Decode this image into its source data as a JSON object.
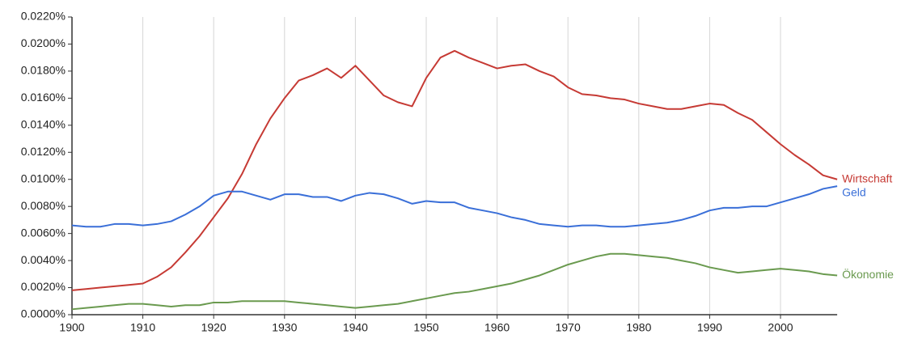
{
  "chart_data": {
    "type": "line",
    "x": [
      1900,
      1902,
      1904,
      1906,
      1908,
      1910,
      1912,
      1914,
      1916,
      1918,
      1920,
      1922,
      1924,
      1926,
      1928,
      1930,
      1932,
      1934,
      1936,
      1938,
      1940,
      1942,
      1944,
      1946,
      1948,
      1950,
      1952,
      1954,
      1956,
      1958,
      1960,
      1962,
      1964,
      1966,
      1968,
      1970,
      1972,
      1974,
      1976,
      1978,
      1980,
      1982,
      1984,
      1986,
      1988,
      1990,
      1992,
      1994,
      1996,
      1998,
      2000,
      2002,
      2004,
      2006,
      2008
    ],
    "series": [
      {
        "name": "Wirtschaft",
        "color": "#c63a34",
        "values": [
          0.0018,
          0.0019,
          0.002,
          0.0021,
          0.0022,
          0.0023,
          0.0028,
          0.0035,
          0.0046,
          0.0058,
          0.0072,
          0.0086,
          0.0104,
          0.0126,
          0.0145,
          0.016,
          0.0173,
          0.0177,
          0.0182,
          0.0175,
          0.0184,
          0.0173,
          0.0162,
          0.0157,
          0.0154,
          0.0175,
          0.019,
          0.0195,
          0.019,
          0.0186,
          0.0182,
          0.0184,
          0.0185,
          0.018,
          0.0176,
          0.0168,
          0.0163,
          0.0162,
          0.016,
          0.0159,
          0.0156,
          0.0154,
          0.0152,
          0.0152,
          0.0154,
          0.0156,
          0.0155,
          0.0149,
          0.0144,
          0.0135,
          0.0126,
          0.0118,
          0.0111,
          0.0103,
          0.01
        ]
      },
      {
        "name": "Geld",
        "color": "#3a6fd8",
        "values": [
          0.0066,
          0.0065,
          0.0065,
          0.0067,
          0.0067,
          0.0066,
          0.0067,
          0.0069,
          0.0074,
          0.008,
          0.0088,
          0.0091,
          0.0091,
          0.0088,
          0.0085,
          0.0089,
          0.0089,
          0.0087,
          0.0087,
          0.0084,
          0.0088,
          0.009,
          0.0089,
          0.0086,
          0.0082,
          0.0084,
          0.0083,
          0.0083,
          0.0079,
          0.0077,
          0.0075,
          0.0072,
          0.007,
          0.0067,
          0.0066,
          0.0065,
          0.0066,
          0.0066,
          0.0065,
          0.0065,
          0.0066,
          0.0067,
          0.0068,
          0.007,
          0.0073,
          0.0077,
          0.0079,
          0.0079,
          0.008,
          0.008,
          0.0083,
          0.0086,
          0.0089,
          0.0093,
          0.0095
        ]
      },
      {
        "name": "Ökonomie",
        "color": "#6a9a4f",
        "values": [
          0.0004,
          0.0005,
          0.0006,
          0.0007,
          0.0008,
          0.0008,
          0.0007,
          0.0006,
          0.0007,
          0.0007,
          0.0009,
          0.0009,
          0.001,
          0.001,
          0.001,
          0.001,
          0.0009,
          0.0008,
          0.0007,
          0.0006,
          0.0005,
          0.0006,
          0.0007,
          0.0008,
          0.001,
          0.0012,
          0.0014,
          0.0016,
          0.0017,
          0.0019,
          0.0021,
          0.0023,
          0.0026,
          0.0029,
          0.0033,
          0.0037,
          0.004,
          0.0043,
          0.0045,
          0.0045,
          0.0044,
          0.0043,
          0.0042,
          0.004,
          0.0038,
          0.0035,
          0.0033,
          0.0031,
          0.0032,
          0.0033,
          0.0034,
          0.0033,
          0.0032,
          0.003,
          0.0029
        ]
      }
    ],
    "xlim": [
      1900,
      2008
    ],
    "xticks": [
      1900,
      1910,
      1920,
      1930,
      1940,
      1950,
      1960,
      1970,
      1980,
      1990,
      2000
    ],
    "ylim": [
      0,
      0.022
    ],
    "yticks": [
      {
        "value": 0,
        "label": "0.0000%"
      },
      {
        "value": 0.002,
        "label": "0.0020%"
      },
      {
        "value": 0.004,
        "label": "0.0040%"
      },
      {
        "value": 0.006,
        "label": "0.0060%"
      },
      {
        "value": 0.008,
        "label": "0.0080%"
      },
      {
        "value": 0.01,
        "label": "0.0100%"
      },
      {
        "value": 0.012,
        "label": "0.0120%"
      },
      {
        "value": 0.014,
        "label": "0.0140%"
      },
      {
        "value": 0.016,
        "label": "0.0160%"
      },
      {
        "value": 0.018,
        "label": "0.0180%"
      },
      {
        "value": 0.02,
        "label": "0.0200%"
      },
      {
        "value": 0.022,
        "label": "0.0220%"
      }
    ],
    "grid": true
  }
}
